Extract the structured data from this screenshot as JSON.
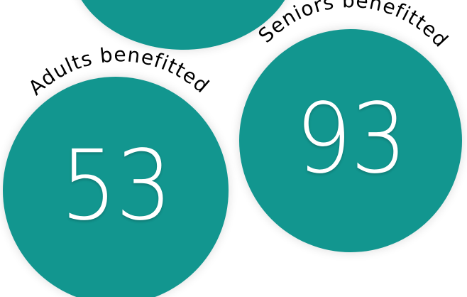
{
  "colors": {
    "circle_fill": "#12968f",
    "number_text": "#ffffff",
    "caption_text": "#000000",
    "background": "#ffffff"
  },
  "stats": [
    {
      "caption": "Adults benefitted",
      "value": "53"
    },
    {
      "caption": "Seniors benefitted",
      "value": "93"
    }
  ]
}
